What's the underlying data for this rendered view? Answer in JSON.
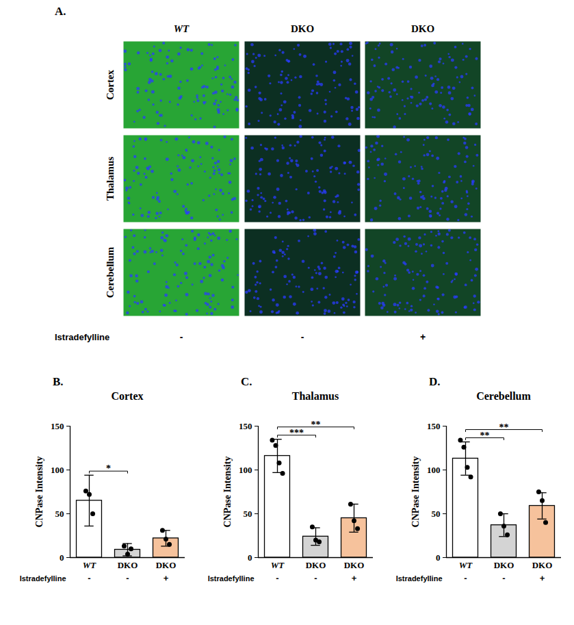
{
  "panel_a": {
    "label": "A.",
    "columns": [
      "WT",
      "DKO",
      "DKO"
    ],
    "rows": [
      "Cortex",
      "Thalamus",
      "Cerebellum"
    ],
    "treatment_label": "Istradefylline",
    "treatment": [
      "-",
      "-",
      "+"
    ]
  },
  "chart_data": [
    {
      "panel": "B.",
      "type": "bar",
      "title": "Cortex",
      "categories": [
        "WT",
        "DKO",
        "DKO"
      ],
      "treatment_label": "Istradefylline",
      "treatment": [
        "-",
        "-",
        "+"
      ],
      "values": [
        65,
        9,
        22
      ],
      "errors": [
        29,
        7,
        9
      ],
      "points": [
        [
          76,
          72,
          50
        ],
        [
          13,
          4,
          10
        ],
        [
          31,
          21,
          15
        ]
      ],
      "colors": [
        "#ffffff",
        "#d4d4d4",
        "#f6c29c"
      ],
      "y_label": "CNPase Intensity",
      "ylim": [
        0,
        150
      ],
      "yticks": [
        0,
        50,
        100,
        150
      ],
      "significance": [
        {
          "from": 0,
          "to": 1,
          "label": "*"
        }
      ]
    },
    {
      "panel": "C.",
      "type": "bar",
      "title": "Thalamus",
      "categories": [
        "WT",
        "DKO",
        "DKO"
      ],
      "treatment_label": "Istradefylline",
      "treatment": [
        "-",
        "-",
        "+"
      ],
      "values": [
        116,
        24,
        45
      ],
      "errors": [
        19,
        10,
        16
      ],
      "points": [
        [
          134,
          128,
          108,
          96
        ],
        [
          35,
          20,
          18
        ],
        [
          61,
          42,
          33
        ]
      ],
      "colors": [
        "#ffffff",
        "#d4d4d4",
        "#f6c29c"
      ],
      "y_label": "CNPase Intensity",
      "ylim": [
        0,
        150
      ],
      "yticks": [
        0,
        50,
        100,
        150
      ],
      "significance": [
        {
          "from": 0,
          "to": 1,
          "label": "***"
        },
        {
          "from": 0,
          "to": 2,
          "label": "**"
        }
      ]
    },
    {
      "panel": "D.",
      "type": "bar",
      "title": "Cerebellum",
      "categories": [
        "WT",
        "DKO",
        "DKO"
      ],
      "treatment_label": "Istradefylline",
      "treatment": [
        "-",
        "-",
        "+"
      ],
      "values": [
        113,
        37,
        59
      ],
      "errors": [
        19,
        13,
        15
      ],
      "points": [
        [
          134,
          126,
          103,
          92
        ],
        [
          50,
          36,
          26
        ],
        [
          75,
          65,
          40
        ]
      ],
      "colors": [
        "#ffffff",
        "#d4d4d4",
        "#f6c29c"
      ],
      "y_label": "CNPase Intensity",
      "ylim": [
        0,
        150
      ],
      "yticks": [
        0,
        50,
        100,
        150
      ],
      "significance": [
        {
          "from": 0,
          "to": 1,
          "label": "**"
        },
        {
          "from": 0,
          "to": 2,
          "label": "**"
        }
      ]
    }
  ]
}
